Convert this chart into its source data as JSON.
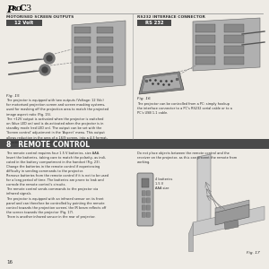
{
  "title_pro": "Pro",
  "title_c3": "C3",
  "bg_color": "#eeebe5",
  "left_section_title": "MOTORISED SCREEN OUTPUTS",
  "right_section_title": "RS232 INTERFACE CONNECTOR",
  "left_label": "12 Volt",
  "right_label": "RS 232",
  "fig15": "Fig. 15",
  "fig16": "Fig. 16",
  "fig17": "Fig. 17",
  "section8_title": "8   REMOTE CONTROL",
  "section8_bar_color": "#4a4a4a",
  "label_bar_color": "#4a4a4a",
  "left_body_text": "The projector is equipped with two outputs (Voltage: 12 Vdc)\nfor motorised projection screen and screen masking systems,\nused for masking off the projection area to match the projected\nimage aspect ratio (Fig. 15).\nThe +12V output is activated when the projector is switched\non (blue LED on) and is de-activated when the projector is in\nstandby mode (red LED on). The output can be set with the\n'Screen control' adjustment in the 'Aspect' menu. This output\nallows reduction in the area of a 16/9 screen, into a 4:3 format,\nby activating a horizontal screen masking system.",
  "right_body_text": "The projector can be controlled from a PC: simply hookup\nthe interface connector to a PC's RS232 serial cable or to a\nPC's USB 1.1 cable.",
  "remote_left_text": "The remote control requires four 1.5 V batteries, size AAA.\nInsert the batteries, taking care to match the polarity, as indi-\ncated in the battery compartment in the handset (Fig. 23).\nChange the batteries in the remote control if experiencing\ndifficulty in sending commands to the projector.\nRemove batteries from the remote control if it is not to be used\nfor a long period of time. The batteries are prone to leak and\ncorrode the remote control's circuits.\nThe remote control sends commands to the projector via\ninfrared signals.\nThe projector is equipped with an infrared sensor on its front\npanel and can therefore be controlled by pointing the remote\ncontrol towards the projection screen; the IR beam reflects off\nthe screen towards the projector (Fig. 17).\nThere is another infrared sensor in the rear of projector.",
  "remote_right_text": "Do not place objects between the remote control and the\nreceiver on the projector, as this can prevent the remote from\nworking.",
  "battery_label": "4 batteries\n1.5 V\nAAA size",
  "page_number": "16",
  "divider_color": "#999999",
  "text_color": "#2a2a2a",
  "title_color": "#111111",
  "header_text_color": "#333333"
}
